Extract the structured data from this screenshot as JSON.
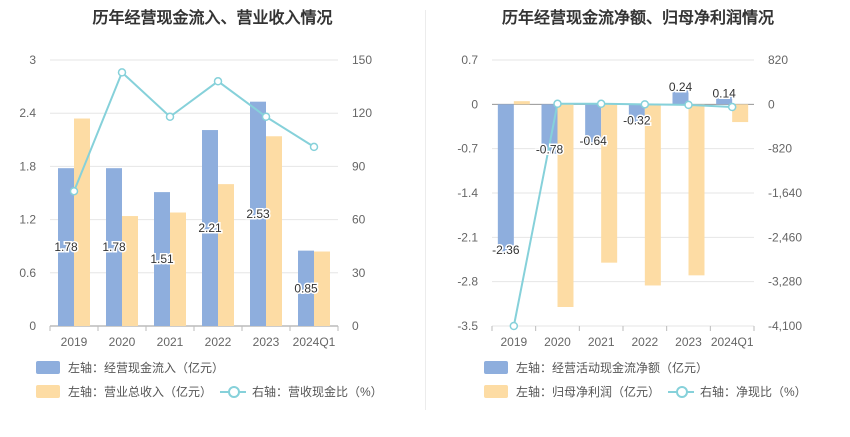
{
  "chart_data": [
    {
      "type": "bar",
      "title": "历年经营现金流入、营业收入情况",
      "categories": [
        "2019",
        "2020",
        "2021",
        "2022",
        "2023",
        "2024Q1"
      ],
      "y_left": {
        "ticks": [
          "3",
          "2.4",
          "1.8",
          "1.2",
          "0.6",
          "0"
        ],
        "range": [
          0,
          3
        ]
      },
      "y_right": {
        "ticks": [
          "150",
          "120",
          "90",
          "60",
          "30",
          "0"
        ],
        "range": [
          0,
          150
        ]
      },
      "series": [
        {
          "name": "左轴：经营现金流入（亿元）",
          "axis": "left",
          "color": "#8eaedd",
          "values": [
            1.78,
            1.78,
            1.51,
            2.21,
            2.53,
            0.85
          ],
          "labels": [
            "1.78",
            "1.78",
            "1.51",
            "2.21",
            "2.53",
            "0.85"
          ]
        },
        {
          "name": "左轴：营业总收入（亿元）",
          "axis": "left",
          "color": "#fddca4",
          "values": [
            2.34,
            1.24,
            1.28,
            1.6,
            2.14,
            0.84
          ]
        },
        {
          "name": "右轴：营收现金比（%）",
          "axis": "right",
          "type": "line",
          "color": "#86d1da",
          "values": [
            76,
            143,
            118,
            138,
            118,
            101
          ]
        }
      ],
      "legend": [
        "左轴：经营现金流入（亿元）",
        "左轴：营业总收入（亿元）",
        "右轴：营收现金比（%）"
      ]
    },
    {
      "type": "bar",
      "title": "历年经营现金流净额、归母净利润情况",
      "categories": [
        "2019",
        "2020",
        "2021",
        "2022",
        "2023",
        "2024Q1"
      ],
      "y_left": {
        "ticks": [
          "0.7",
          "0",
          "-0.7",
          "-1.4",
          "-2.1",
          "-2.8",
          "-3.5"
        ],
        "range": [
          -3.5,
          0.7
        ]
      },
      "y_right": {
        "ticks": [
          "820",
          "0",
          "-820",
          "-1,640",
          "-2,460",
          "-3,280",
          "-4,100"
        ],
        "range": [
          -4100,
          820
        ]
      },
      "series": [
        {
          "name": "左轴：经营活动现金流净额（亿元）",
          "axis": "left",
          "color": "#8eaedd",
          "values": [
            -2.36,
            -0.78,
            -0.64,
            -0.32,
            0.24,
            0.14
          ],
          "labels": [
            "-2.36",
            "-0.78",
            "-0.64",
            "-0.32",
            "0.24",
            "0.14"
          ]
        },
        {
          "name": "左轴：归母净利润（亿元）",
          "axis": "left",
          "color": "#fddca4",
          "values": [
            0.05,
            -3.2,
            -2.5,
            -2.86,
            -2.7,
            -0.28
          ]
        },
        {
          "name": "右轴：净现比（%）",
          "axis": "right",
          "type": "line",
          "color": "#86d1da",
          "values": [
            -4100,
            10,
            10,
            0,
            -10,
            -50
          ]
        }
      ],
      "legend": [
        "左轴：经营活动现金流净额（亿元）",
        "左轴：归母净利润（亿元）",
        "右轴：净现比（%）"
      ]
    }
  ]
}
